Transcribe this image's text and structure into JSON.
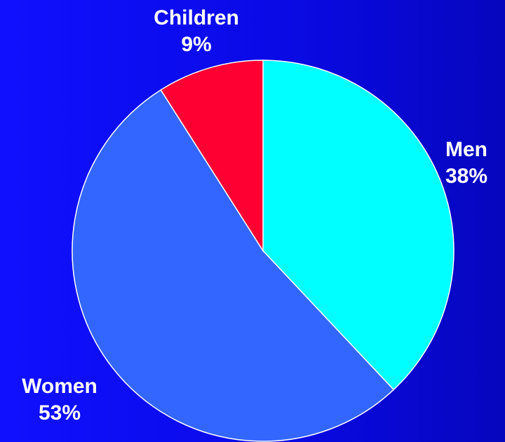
{
  "chart_data": {
    "type": "pie",
    "slices": [
      {
        "label": "Men",
        "value": 38,
        "value_label": "38%",
        "color": "#00FFFF"
      },
      {
        "label": "Women",
        "value": 53,
        "value_label": "53%",
        "color": "#3366FF"
      },
      {
        "label": "Children",
        "value": 9,
        "value_label": "9%",
        "color": "#FF0033"
      }
    ],
    "slice_border_color": "#FFFFFF",
    "background_color": "#0A0AE6",
    "label_color": "#FFFFFF"
  }
}
